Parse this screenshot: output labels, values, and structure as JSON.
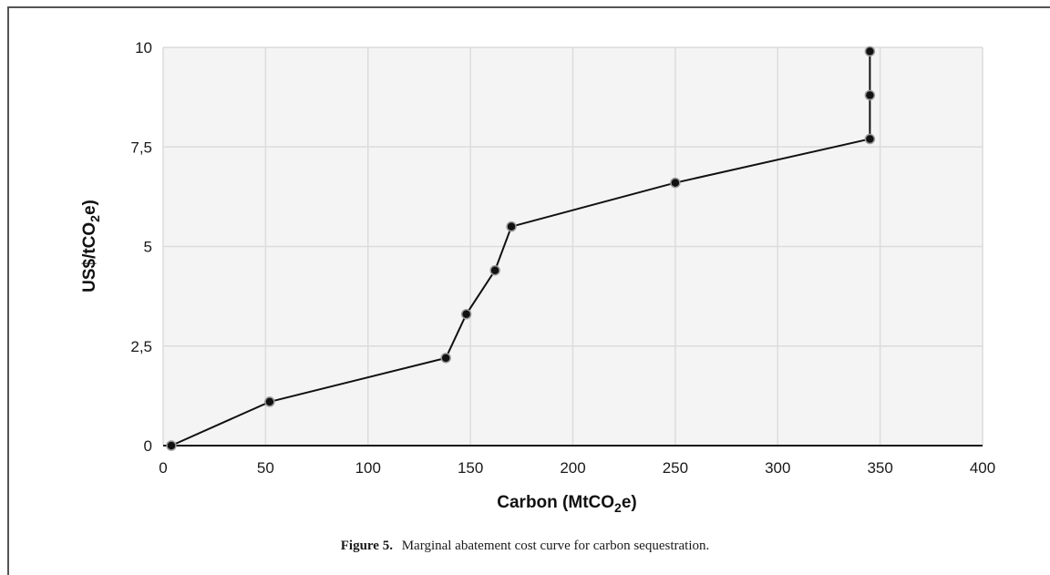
{
  "chart_data": {
    "type": "line",
    "x": [
      4,
      52,
      138,
      148,
      162,
      170,
      250,
      345,
      345,
      345
    ],
    "y": [
      0,
      1.1,
      2.2,
      3.3,
      4.4,
      5.5,
      6.6,
      7.7,
      8.8,
      9.9
    ],
    "xlim": [
      0,
      400
    ],
    "ylim": [
      0,
      10
    ],
    "x_ticks": [
      "0",
      "50",
      "100",
      "150",
      "200",
      "250",
      "300",
      "350",
      "400"
    ],
    "y_ticks": [
      "0",
      "2,5",
      "5",
      "7,5",
      "10"
    ],
    "x_tick_values": [
      0,
      50,
      100,
      150,
      200,
      250,
      300,
      350,
      400
    ],
    "y_tick_values": [
      0,
      2.5,
      5,
      7.5,
      10
    ],
    "xlabel_main": "Carbon (MtCO",
    "xlabel_sub": "2",
    "xlabel_tail": "e)",
    "ylabel_main": "US$/tCO",
    "ylabel_sub": "2",
    "ylabel_tail": "e)",
    "grid": true,
    "background": "#f4f4f4",
    "line_color": "#111111",
    "marker_color": "#111111"
  },
  "caption": {
    "label": "Figure 5.",
    "text": "Marginal abatement cost curve for carbon sequestration."
  }
}
